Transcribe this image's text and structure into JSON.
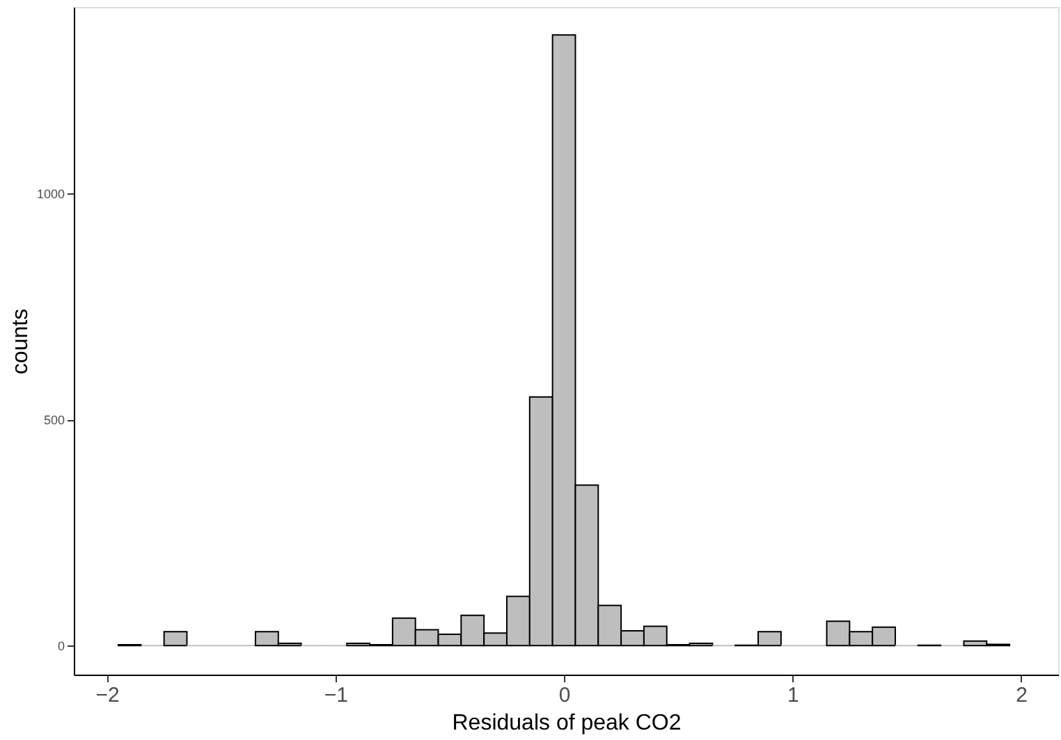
{
  "chart_data": {
    "type": "histogram",
    "xlabel": "Residuals of peak CO2",
    "ylabel": "counts",
    "bins": [
      -1.95,
      -1.85,
      -1.75,
      -1.65,
      -1.55,
      -1.45,
      -1.35,
      -1.25,
      -1.15,
      -1.05,
      -0.95,
      -0.85,
      -0.75,
      -0.65,
      -0.55,
      -0.45,
      -0.35,
      -0.25,
      -0.15,
      -0.05,
      0.05,
      0.15,
      0.25,
      0.35,
      0.45,
      0.55,
      0.65,
      0.75,
      0.85,
      0.95,
      1.05,
      1.15,
      1.25,
      1.35,
      1.45,
      1.55,
      1.65,
      1.75,
      1.85,
      1.95
    ],
    "values": [
      2,
      0,
      31,
      0,
      0,
      0,
      31,
      5,
      0,
      0,
      5,
      2,
      61,
      35,
      25,
      67,
      28,
      109,
      550,
      1350,
      355,
      89,
      33,
      43,
      2,
      5,
      0,
      1,
      31,
      0,
      0,
      54,
      31,
      41,
      0,
      1,
      0,
      10,
      3
    ],
    "color": "#bebebe",
    "xlim": [
      -2.145,
      2.163
    ],
    "xticks": [
      -2,
      -1,
      0,
      1,
      2
    ],
    "ylim": [
      -64,
      1412
    ],
    "yticks": [
      0,
      500,
      1000
    ],
    "grid": false
  }
}
